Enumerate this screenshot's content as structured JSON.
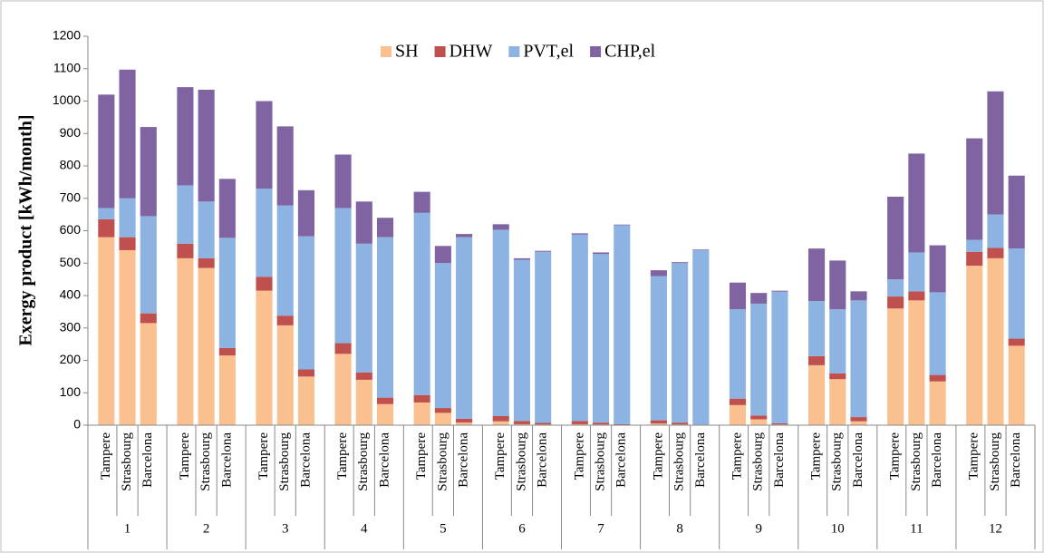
{
  "chart_data": {
    "type": "bar",
    "stacked": true,
    "y_label": "Exergy product [kWh/month]",
    "categories": [
      "Tampere",
      "Strasbourg",
      "Barcelona",
      "Tampere",
      "Strasbourg",
      "Barcelona",
      "Tampere",
      "Strasbourg",
      "Barcelona",
      "Tampere",
      "Strasbourg",
      "Barcelona",
      "Tampere",
      "Strasbourg",
      "Barcelona",
      "Tampere",
      "Strasbourg",
      "Barcelona",
      "Tampere",
      "Strasbourg",
      "Barcelona",
      "Tampere",
      "Strasbourg",
      "Barcelona",
      "Tampere",
      "Strasbourg",
      "Barcelona",
      "Tampere",
      "Strasbourg",
      "Barcelona",
      "Tampere",
      "Strasbourg",
      "Barcelona",
      "Tampere",
      "Strasbourg",
      "Barcelona"
    ],
    "groups": [
      "1",
      "2",
      "3",
      "4",
      "5",
      "6",
      "7",
      "8",
      "9",
      "10",
      "11",
      "12"
    ],
    "series": [
      {
        "name": "SH",
        "color": "#fac090",
        "values": [
          580,
          540,
          315,
          515,
          485,
          215,
          415,
          308,
          150,
          220,
          140,
          65,
          70,
          38,
          8,
          12,
          3,
          2,
          3,
          2,
          0,
          5,
          2,
          0,
          62,
          18,
          2,
          185,
          142,
          12,
          360,
          385,
          135,
          492,
          515,
          245
        ]
      },
      {
        "name": "DHW",
        "color": "#c0504d",
        "values": [
          55,
          40,
          30,
          45,
          30,
          23,
          43,
          30,
          22,
          33,
          23,
          20,
          23,
          15,
          12,
          16,
          10,
          5,
          10,
          6,
          3,
          10,
          6,
          2,
          20,
          12,
          4,
          28,
          18,
          13,
          37,
          28,
          20,
          43,
          32,
          22
        ]
      },
      {
        "name": "PVT,el",
        "color": "#8db3e2",
        "values": [
          35,
          120,
          300,
          180,
          175,
          340,
          272,
          340,
          411,
          417,
          397,
          495,
          562,
          447,
          560,
          575,
          497,
          528,
          575,
          520,
          614,
          445,
          492,
          538,
          276,
          345,
          406,
          170,
          198,
          360,
          53,
          120,
          255,
          37,
          103,
          278
        ]
      },
      {
        "name": "CHP,el",
        "color": "#8064a2",
        "values": [
          350,
          397,
          275,
          303,
          345,
          182,
          270,
          244,
          142,
          165,
          130,
          60,
          65,
          53,
          10,
          17,
          5,
          3,
          4,
          5,
          2,
          18,
          3,
          2,
          82,
          33,
          3,
          162,
          150,
          28,
          255,
          305,
          145,
          313,
          380,
          225
        ]
      }
    ],
    "ylim": [
      0,
      1200
    ],
    "yticks": [
      0,
      100,
      200,
      300,
      400,
      500,
      600,
      700,
      800,
      900,
      1000,
      1100,
      1200
    ],
    "legend": "top"
  }
}
